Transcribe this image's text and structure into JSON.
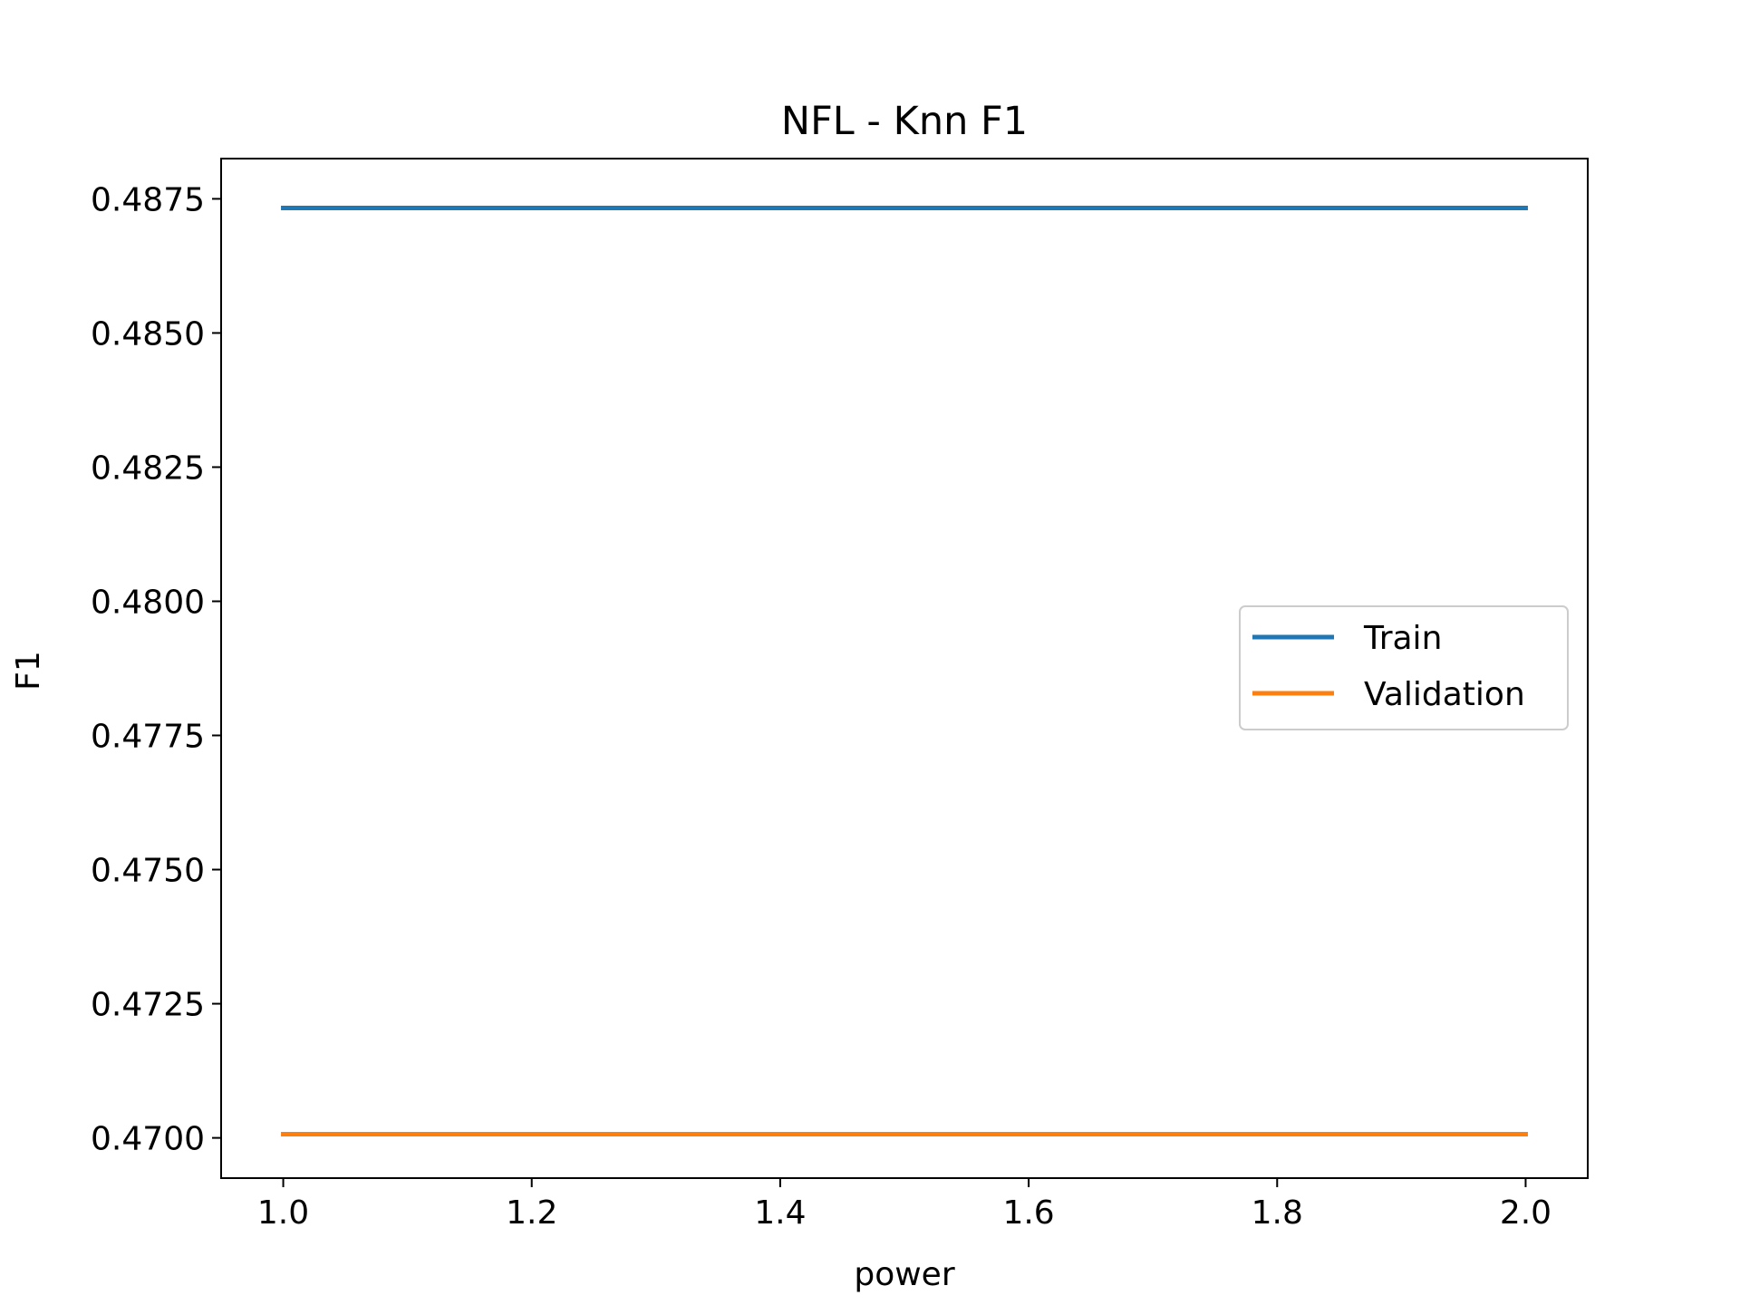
{
  "chart_data": {
    "type": "line",
    "title": "NFL - Knn F1",
    "xlabel": "power",
    "ylabel": "F1",
    "x": [
      1.0,
      2.0
    ],
    "series": [
      {
        "name": "Train",
        "values": [
          0.48733,
          0.48733
        ],
        "color": "#1f77b4"
      },
      {
        "name": "Validation",
        "values": [
          0.47007,
          0.47007
        ],
        "color": "#ff7f0e"
      }
    ],
    "xlim": [
      0.95,
      2.05
    ],
    "ylim": [
      0.46925,
      0.48825
    ],
    "xticks": [
      1.0,
      1.2,
      1.4,
      1.6,
      1.8,
      2.0
    ],
    "xtick_labels": [
      "1.0",
      "1.2",
      "1.4",
      "1.6",
      "1.8",
      "2.0"
    ],
    "yticks": [
      0.47,
      0.4725,
      0.475,
      0.4775,
      0.48,
      0.4825,
      0.485,
      0.4875
    ],
    "ytick_labels": [
      "0.4700",
      "0.4725",
      "0.4750",
      "0.4775",
      "0.4800",
      "0.4825",
      "0.4850",
      "0.4875"
    ],
    "grid": false,
    "legend_position": "center-right"
  }
}
